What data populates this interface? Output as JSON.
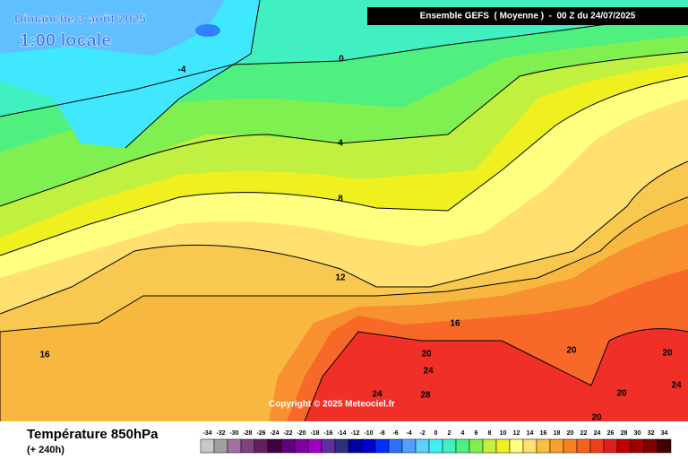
{
  "header": {
    "title": "Dimanche 3 août 2025",
    "subtitle": "1:00 locale",
    "model": "Ensemble GEFS  ( Moyenne )  -  00 Z du 24/07/2025"
  },
  "map": {
    "contour_labels": [
      -4,
      0,
      4,
      8,
      12,
      16,
      16,
      20,
      24,
      24,
      28,
      20,
      20,
      24,
      20,
      20
    ],
    "copyright": "Copyright © 2025 Meteociel.fr"
  },
  "footer": {
    "parameter": "Température 850hPa",
    "lead_time": "(+ 240h)"
  },
  "scale": {
    "labels": [
      -34,
      -32,
      -30,
      -28,
      -26,
      -24,
      -22,
      -20,
      -18,
      -16,
      -14,
      -12,
      -10,
      -8,
      -6,
      -4,
      -2,
      0,
      2,
      4,
      6,
      8,
      10,
      12,
      14,
      16,
      18,
      20,
      22,
      24,
      26,
      28,
      30,
      32,
      34
    ],
    "colors": [
      "#c8c8c8",
      "#a0a0a0",
      "#a070a0",
      "#804080",
      "#602060",
      "#400040",
      "#600080",
      "#8000a0",
      "#a000c0",
      "#6030a0",
      "#303080",
      "#0000a0",
      "#0000d0",
      "#0030ff",
      "#3070ff",
      "#50a0ff",
      "#60d0ff",
      "#40f0f0",
      "#40f0c0",
      "#50f080",
      "#80f050",
      "#c0f040",
      "#f0f020",
      "#ffff80",
      "#ffe070",
      "#f8c040",
      "#f8a030",
      "#f88020",
      "#f86020",
      "#f04020",
      "#e02020",
      "#c00000",
      "#a00000",
      "#800000",
      "#400000"
    ]
  }
}
